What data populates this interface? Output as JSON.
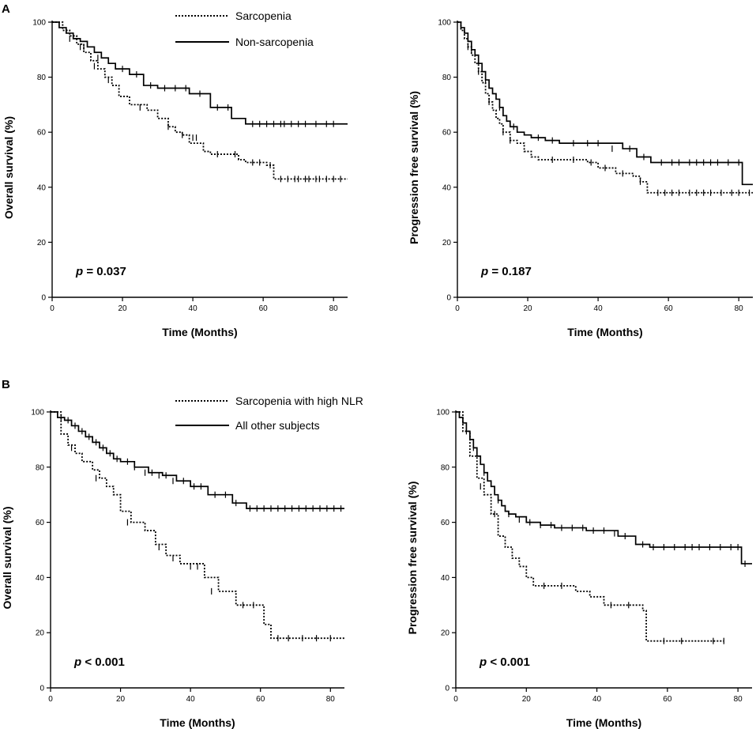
{
  "panel_labels": [
    "A",
    "B"
  ],
  "legends": {
    "A": {
      "dotted": "Sarcopenia",
      "solid": "Non-sarcopenia"
    },
    "B": {
      "dotted": "Sarcopenia with high NLR",
      "solid": "All other subjects"
    }
  },
  "chart_data": [
    {
      "type": "line",
      "panel": "A",
      "xlabel": "Time (Months)",
      "ylabel": "Overall survival (%)",
      "xlim": [
        0,
        84
      ],
      "ylim": [
        0,
        100
      ],
      "xticks": [
        0,
        20,
        40,
        60,
        80
      ],
      "yticks": [
        0,
        20,
        40,
        60,
        80,
        100
      ],
      "p_prefix": "p",
      "p_value": "= 0.037",
      "series": [
        {
          "name": "Sarcopenia",
          "style": "dotted",
          "x": [
            0,
            3,
            5,
            7,
            9,
            11,
            13,
            15,
            17,
            19,
            22,
            27,
            30,
            33,
            35,
            37,
            39,
            43,
            45,
            53,
            55,
            61,
            63,
            84
          ],
          "y": [
            100,
            97,
            95,
            92,
            89,
            86,
            83,
            80,
            77,
            73,
            70,
            68,
            65,
            62,
            60,
            59,
            56,
            53,
            52,
            50,
            49,
            48,
            43,
            43
          ],
          "censor_x": [
            8,
            12,
            16,
            25,
            33,
            37,
            40,
            41,
            47,
            52,
            57,
            59,
            62,
            65,
            67,
            69,
            70,
            72,
            73,
            75,
            76,
            78,
            80,
            82
          ],
          "censor_y": [
            91,
            84,
            79,
            69,
            62,
            59,
            58,
            58,
            52,
            52,
            49,
            49,
            48,
            43,
            43,
            43,
            43,
            43,
            43,
            43,
            43,
            43,
            43,
            43
          ]
        },
        {
          "name": "Non-sarcopenia",
          "style": "solid",
          "x": [
            0,
            2,
            4,
            6,
            8,
            10,
            12,
            14,
            16,
            18,
            22,
            26,
            30,
            39,
            45,
            51,
            55,
            84
          ],
          "y": [
            100,
            98,
            96,
            94,
            93,
            91,
            89,
            87,
            85,
            83,
            81,
            77,
            76,
            74,
            69,
            65,
            63,
            63
          ],
          "censor_x": [
            5,
            9,
            13,
            20,
            24,
            28,
            32,
            35,
            38,
            42,
            47,
            50,
            57,
            59,
            61,
            63,
            65,
            66,
            68,
            70,
            72,
            75,
            78,
            80
          ],
          "censor_y": [
            94,
            91,
            87,
            83,
            81,
            77,
            76,
            76,
            76,
            74,
            69,
            69,
            63,
            63,
            63,
            63,
            63,
            63,
            63,
            63,
            63,
            63,
            63,
            63
          ]
        }
      ]
    },
    {
      "type": "line",
      "panel": "A",
      "xlabel": "Time (Months)",
      "ylabel": "Progression free survival (%)",
      "xlim": [
        0,
        84
      ],
      "ylim": [
        0,
        100
      ],
      "xticks": [
        0,
        20,
        40,
        60,
        80
      ],
      "yticks": [
        0,
        20,
        40,
        60,
        80,
        100
      ],
      "p_prefix": "p",
      "p_value": "= 0.187",
      "series": [
        {
          "name": "Sarcopenia",
          "style": "dotted",
          "x": [
            0,
            1,
            2,
            3,
            4,
            5,
            6,
            7,
            8,
            9,
            10,
            11,
            12,
            13,
            15,
            17,
            19,
            21,
            23,
            37,
            40,
            45,
            50,
            52,
            54,
            84
          ],
          "y": [
            100,
            97,
            94,
            91,
            88,
            85,
            82,
            78,
            74,
            71,
            68,
            65,
            63,
            60,
            57,
            56,
            53,
            51,
            50,
            49,
            47,
            45,
            44,
            42,
            38,
            38
          ],
          "censor_x": [
            3,
            6,
            9,
            13,
            15,
            27,
            33,
            38,
            42,
            47,
            52,
            57,
            59,
            61,
            63,
            66,
            68,
            70,
            72,
            75,
            78,
            80,
            83
          ],
          "censor_y": [
            91,
            82,
            71,
            60,
            57,
            50,
            50,
            49,
            47,
            45,
            42,
            38,
            38,
            38,
            38,
            38,
            38,
            38,
            38,
            38,
            38,
            38,
            38
          ]
        },
        {
          "name": "Non-sarcopenia",
          "style": "solid",
          "x": [
            0,
            1,
            2,
            3,
            4,
            5,
            6,
            7,
            8,
            9,
            10,
            11,
            12,
            13,
            14,
            15,
            17,
            19,
            21,
            25,
            29,
            47,
            51,
            55,
            81,
            84
          ],
          "y": [
            100,
            98,
            96,
            93,
            90,
            88,
            85,
            82,
            79,
            76,
            74,
            72,
            69,
            66,
            64,
            62,
            60,
            59,
            58,
            57,
            56,
            54,
            51,
            49,
            41,
            41
          ],
          "censor_x": [
            4,
            8,
            12,
            16,
            23,
            27,
            33,
            37,
            40,
            44,
            49,
            53,
            58,
            61,
            63,
            66,
            68,
            70,
            72,
            74,
            77,
            80
          ],
          "censor_y": [
            90,
            79,
            69,
            62,
            58,
            57,
            56,
            56,
            56,
            54,
            54,
            51,
            49,
            49,
            49,
            49,
            49,
            49,
            49,
            49,
            49,
            49
          ]
        }
      ]
    },
    {
      "type": "line",
      "panel": "B",
      "xlabel": "Time (Months)",
      "ylabel": "Overall survival (%)",
      "xlim": [
        0,
        84
      ],
      "ylim": [
        0,
        100
      ],
      "xticks": [
        0,
        20,
        40,
        60,
        80
      ],
      "yticks": [
        0,
        20,
        40,
        60,
        80,
        100
      ],
      "p_prefix": "p",
      "p_value": "< 0.001",
      "series": [
        {
          "name": "Sarcopenia with high NLR",
          "style": "dotted",
          "x": [
            0,
            3,
            5,
            7,
            9,
            12,
            14,
            16,
            18,
            20,
            23,
            27,
            30,
            33,
            37,
            44,
            48,
            53,
            61,
            63,
            84
          ],
          "y": [
            100,
            92,
            88,
            85,
            82,
            79,
            76,
            73,
            70,
            64,
            60,
            57,
            52,
            48,
            45,
            40,
            35,
            30,
            23,
            18,
            18
          ],
          "censor_x": [
            6,
            13,
            22,
            31,
            35,
            40,
            42,
            46,
            55,
            58,
            65,
            68,
            72,
            76,
            80
          ],
          "censor_y": [
            87,
            76,
            60,
            51,
            47,
            44,
            44,
            35,
            30,
            30,
            18,
            18,
            18,
            18,
            18
          ]
        },
        {
          "name": "All other subjects",
          "style": "solid",
          "x": [
            0,
            2,
            4,
            6,
            8,
            10,
            12,
            14,
            16,
            18,
            20,
            24,
            28,
            32,
            36,
            40,
            45,
            52,
            56,
            84
          ],
          "y": [
            100,
            98,
            97,
            95,
            93,
            91,
            89,
            87,
            85,
            83,
            82,
            80,
            78,
            77,
            75,
            73,
            70,
            67,
            65,
            65
          ],
          "censor_x": [
            3,
            5,
            7,
            9,
            11,
            13,
            15,
            17,
            19,
            22,
            24,
            27,
            29,
            31,
            33,
            35,
            38,
            41,
            43,
            47,
            50,
            53,
            57,
            59,
            61,
            63,
            65,
            67,
            69,
            71,
            73,
            75,
            77,
            79,
            81,
            83
          ],
          "censor_y": [
            98,
            97,
            95,
            93,
            91,
            89,
            87,
            85,
            83,
            82,
            80,
            78,
            78,
            77,
            77,
            75,
            75,
            73,
            73,
            70,
            70,
            67,
            65,
            65,
            65,
            65,
            65,
            65,
            65,
            65,
            65,
            65,
            65,
            65,
            65,
            65
          ]
        }
      ]
    },
    {
      "type": "line",
      "panel": "B",
      "xlabel": "Time (Months)",
      "ylabel": "Progression free survival (%)",
      "xlim": [
        0,
        84
      ],
      "ylim": [
        0,
        100
      ],
      "xticks": [
        0,
        20,
        40,
        60,
        80
      ],
      "yticks": [
        0,
        20,
        40,
        60,
        80,
        100
      ],
      "p_prefix": "p",
      "p_value": "< 0.001",
      "series": [
        {
          "name": "Sarcopenia with high NLR",
          "style": "dotted",
          "x": [
            0,
            2,
            4,
            6,
            8,
            10,
            12,
            14,
            16,
            18,
            20,
            22,
            34,
            38,
            42,
            53,
            54,
            76
          ],
          "y": [
            100,
            93,
            84,
            76,
            70,
            63,
            55,
            51,
            47,
            44,
            40,
            37,
            35,
            33,
            30,
            28,
            17,
            17
          ],
          "censor_x": [
            7,
            11,
            25,
            30,
            44,
            49,
            59,
            64,
            73,
            76
          ],
          "censor_y": [
            73,
            63,
            37,
            37,
            30,
            30,
            17,
            17,
            17,
            17
          ]
        },
        {
          "name": "All other subjects",
          "style": "solid",
          "x": [
            0,
            1,
            2,
            3,
            4,
            5,
            6,
            7,
            8,
            9,
            10,
            11,
            12,
            13,
            14,
            15,
            17,
            20,
            24,
            28,
            37,
            46,
            51,
            55,
            81,
            84
          ],
          "y": [
            100,
            98,
            96,
            93,
            90,
            87,
            84,
            81,
            78,
            75,
            73,
            70,
            68,
            66,
            64,
            63,
            62,
            60,
            59,
            58,
            57,
            55,
            52,
            51,
            45,
            45
          ],
          "censor_x": [
            3,
            5,
            8,
            12,
            15,
            18,
            21,
            24,
            27,
            30,
            33,
            36,
            39,
            42,
            45,
            48,
            53,
            56,
            59,
            62,
            65,
            67,
            69,
            72,
            75,
            78,
            80,
            82
          ],
          "censor_y": [
            93,
            87,
            78,
            68,
            63,
            61,
            60,
            59,
            59,
            58,
            58,
            58,
            57,
            57,
            56,
            55,
            52,
            51,
            51,
            51,
            51,
            51,
            51,
            51,
            51,
            51,
            51,
            45
          ]
        }
      ]
    }
  ]
}
